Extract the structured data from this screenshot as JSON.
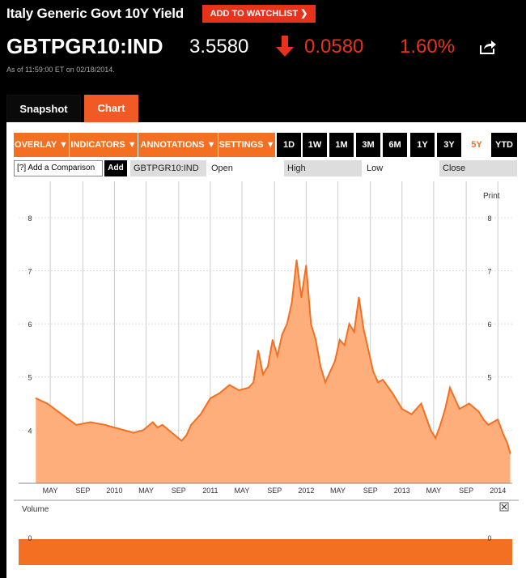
{
  "header": {
    "title": "Italy Generic Govt 10Y Yield",
    "watch_label": "ADD TO WATCHLIST",
    "ticker": "GBTPGR10:IND",
    "price": "3.5580",
    "change": "0.0580",
    "change_pct": "1.60%",
    "as_of": "As of 11:59:00 ET on 02/18/2014.",
    "down_color": "#e8331c"
  },
  "tabs": [
    {
      "label": "Snapshot",
      "active": false
    },
    {
      "label": "Chart",
      "active": true
    }
  ],
  "toolbar": {
    "menus": [
      "OVERLAY ▼",
      "INDICATORS ▼",
      "ANNOTATIONS ▼",
      "SETTINGS ▼"
    ],
    "ranges": [
      "1D",
      "1W",
      "1M",
      "3M",
      "6M",
      "1Y",
      "3Y",
      "5Y",
      "YTD"
    ],
    "active_range": "5Y",
    "accent": "#f36f21"
  },
  "compare": {
    "placeholder": "[?] Add a Comparison",
    "add_label": "Add",
    "symbol": "GBTPGR10:IND",
    "open_label": "Open",
    "high_label": "High",
    "low_label": "Low",
    "close_label": "Close"
  },
  "chart_controls": {
    "print_label": "Print",
    "volume_label": "Volume",
    "close_icon": "close-icon"
  },
  "chart_data": {
    "type": "area",
    "color": "#f36f21",
    "fill": "#fdae7b",
    "x_tick_labels": [
      "MAY",
      "SEP",
      "2010",
      "MAY",
      "SEP",
      "2011",
      "MAY",
      "SEP",
      "2012",
      "MAY",
      "SEP",
      "2013",
      "MAY",
      "SEP",
      "2014"
    ],
    "y_ticks": [
      4,
      5,
      6,
      7,
      8
    ],
    "ylim": [
      3.0,
      8.5
    ],
    "x_years": [
      2009.18,
      2009.3,
      2009.45,
      2009.6,
      2009.75,
      2009.9,
      2010.0,
      2010.1,
      2010.2,
      2010.3,
      2010.4,
      2010.45,
      2010.5,
      2010.6,
      2010.7,
      2010.75,
      2010.8,
      2010.9,
      2011.0,
      2011.1,
      2011.2,
      2011.3,
      2011.4,
      2011.45,
      2011.5,
      2011.55,
      2011.6,
      2011.65,
      2011.7,
      2011.75,
      2011.8,
      2011.85,
      2011.9,
      2011.95,
      2012.0,
      2012.05,
      2012.1,
      2012.15,
      2012.2,
      2012.3,
      2012.35,
      2012.4,
      2012.45,
      2012.5,
      2012.55,
      2012.6,
      2012.65,
      2012.7,
      2012.75,
      2012.8,
      2012.9,
      2013.0,
      2013.1,
      2013.2,
      2013.25,
      2013.3,
      2013.35,
      2013.4,
      2013.45,
      2013.5,
      2013.55,
      2013.6,
      2013.7,
      2013.8,
      2013.85,
      2013.9,
      2014.0,
      2014.05,
      2014.1,
      2014.13
    ],
    "values": [
      4.6,
      4.5,
      4.3,
      4.1,
      4.15,
      4.1,
      4.05,
      4.0,
      3.95,
      4.0,
      4.15,
      4.05,
      4.1,
      3.95,
      3.8,
      3.9,
      4.1,
      4.3,
      4.6,
      4.7,
      4.85,
      4.75,
      4.8,
      4.9,
      5.5,
      5.05,
      5.2,
      5.7,
      5.4,
      5.8,
      6.0,
      6.4,
      7.2,
      6.5,
      7.1,
      6.0,
      5.7,
      5.2,
      4.9,
      5.3,
      5.7,
      5.6,
      6.0,
      5.85,
      6.5,
      5.9,
      5.5,
      5.1,
      4.9,
      4.95,
      4.7,
      4.4,
      4.3,
      4.5,
      4.25,
      4.0,
      3.85,
      4.1,
      4.4,
      4.8,
      4.6,
      4.4,
      4.5,
      4.35,
      4.2,
      4.1,
      4.2,
      3.95,
      3.75,
      3.56
    ]
  }
}
